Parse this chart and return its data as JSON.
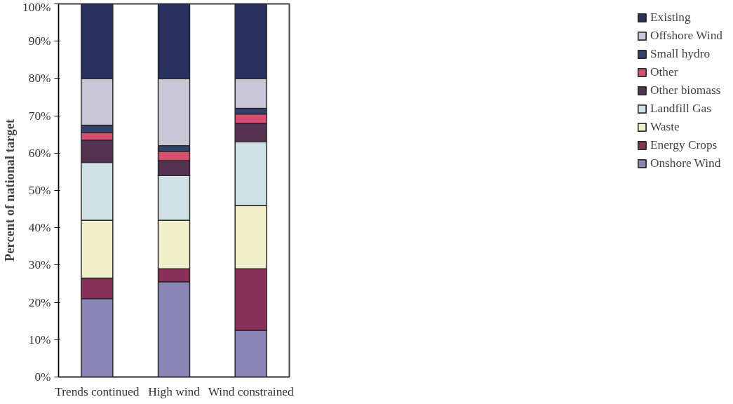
{
  "chart_data": {
    "type": "bar",
    "stacked": true,
    "ylabel": "Percent of national target",
    "categories": [
      "Trends continued",
      "High wind",
      "Wind constrained"
    ],
    "series": [
      {
        "name": "Onshore Wind",
        "color": "#8a86b8",
        "values": [
          21,
          25.5,
          12.5
        ]
      },
      {
        "name": "Energy Crops",
        "color": "#8a3058",
        "values": [
          5.5,
          3.5,
          16.5
        ]
      },
      {
        "name": "Waste",
        "color": "#f0efcc",
        "values": [
          15.5,
          13,
          17
        ]
      },
      {
        "name": "Landfill Gas",
        "color": "#cfe0e6",
        "values": [
          15.5,
          12,
          17
        ]
      },
      {
        "name": "Other biomass",
        "color": "#563252",
        "values": [
          6,
          4,
          5
        ]
      },
      {
        "name": "Other",
        "color": "#d4506e",
        "values": [
          2,
          2.5,
          2.5
        ]
      },
      {
        "name": "Small hydro",
        "color": "#34436e",
        "values": [
          2,
          1.5,
          1.5
        ]
      },
      {
        "name": "Offshore Wind",
        "color": "#c9c6d6",
        "values": [
          12.5,
          18,
          8
        ]
      },
      {
        "name": "Existing",
        "color": "#27305e",
        "values": [
          20,
          20,
          20
        ]
      }
    ],
    "ylim": [
      0,
      100
    ],
    "yticks": [
      {
        "value": 0,
        "label": "0%"
      },
      {
        "value": 10,
        "label": "10%"
      },
      {
        "value": 20,
        "label": "20%"
      },
      {
        "value": 30,
        "label": "30%"
      },
      {
        "value": 40,
        "label": "40%"
      },
      {
        "value": 50,
        "label": "50%"
      },
      {
        "value": 60,
        "label": "60%"
      },
      {
        "value": 70,
        "label": "70%"
      },
      {
        "value": 80,
        "label": "80%"
      },
      {
        "value": 90,
        "label": "90%"
      },
      {
        "value": 100,
        "label": "100%"
      }
    ],
    "grid": false,
    "legend": "right"
  }
}
